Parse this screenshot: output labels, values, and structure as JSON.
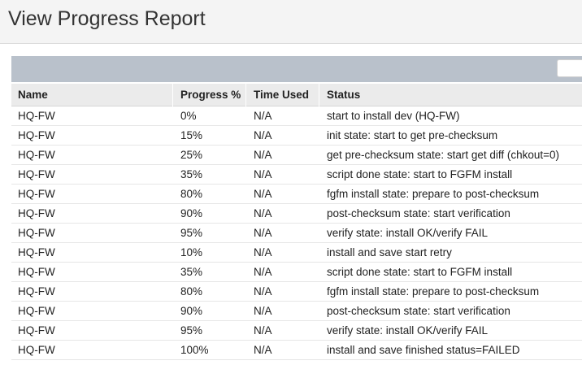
{
  "page": {
    "title": "View Progress Report"
  },
  "table": {
    "columns": [
      "Name",
      "Progress %",
      "Time Used",
      "Status"
    ],
    "rows": [
      {
        "name": "HQ-FW",
        "progress": "0%",
        "time": "N/A",
        "status": "start to install dev (HQ-FW)"
      },
      {
        "name": "HQ-FW",
        "progress": "15%",
        "time": "N/A",
        "status": "init state: start to get pre-checksum"
      },
      {
        "name": "HQ-FW",
        "progress": "25%",
        "time": "N/A",
        "status": "get pre-checksum state: start get diff (chkout=0)"
      },
      {
        "name": "HQ-FW",
        "progress": "35%",
        "time": "N/A",
        "status": "script done state: start to FGFM install"
      },
      {
        "name": "HQ-FW",
        "progress": "80%",
        "time": "N/A",
        "status": "fgfm install state: prepare to post-checksum"
      },
      {
        "name": "HQ-FW",
        "progress": "90%",
        "time": "N/A",
        "status": "post-checksum state: start verification"
      },
      {
        "name": "HQ-FW",
        "progress": "95%",
        "time": "N/A",
        "status": "verify state: install OK/verify FAIL"
      },
      {
        "name": "HQ-FW",
        "progress": "10%",
        "time": "N/A",
        "status": "install and save start retry"
      },
      {
        "name": "HQ-FW",
        "progress": "35%",
        "time": "N/A",
        "status": "script done state: start to FGFM install"
      },
      {
        "name": "HQ-FW",
        "progress": "80%",
        "time": "N/A",
        "status": "fgfm install state: prepare to post-checksum"
      },
      {
        "name": "HQ-FW",
        "progress": "90%",
        "time": "N/A",
        "status": "post-checksum state: start verification"
      },
      {
        "name": "HQ-FW",
        "progress": "95%",
        "time": "N/A",
        "status": "verify state: install OK/verify FAIL"
      },
      {
        "name": "HQ-FW",
        "progress": "100%",
        "time": "N/A",
        "status": "install and save finished status=FAILED"
      }
    ]
  },
  "colors": {
    "toolbar": "#b9c1cb",
    "header_bg": "#f4f4f4",
    "table_header_bg": "#ebebeb"
  }
}
